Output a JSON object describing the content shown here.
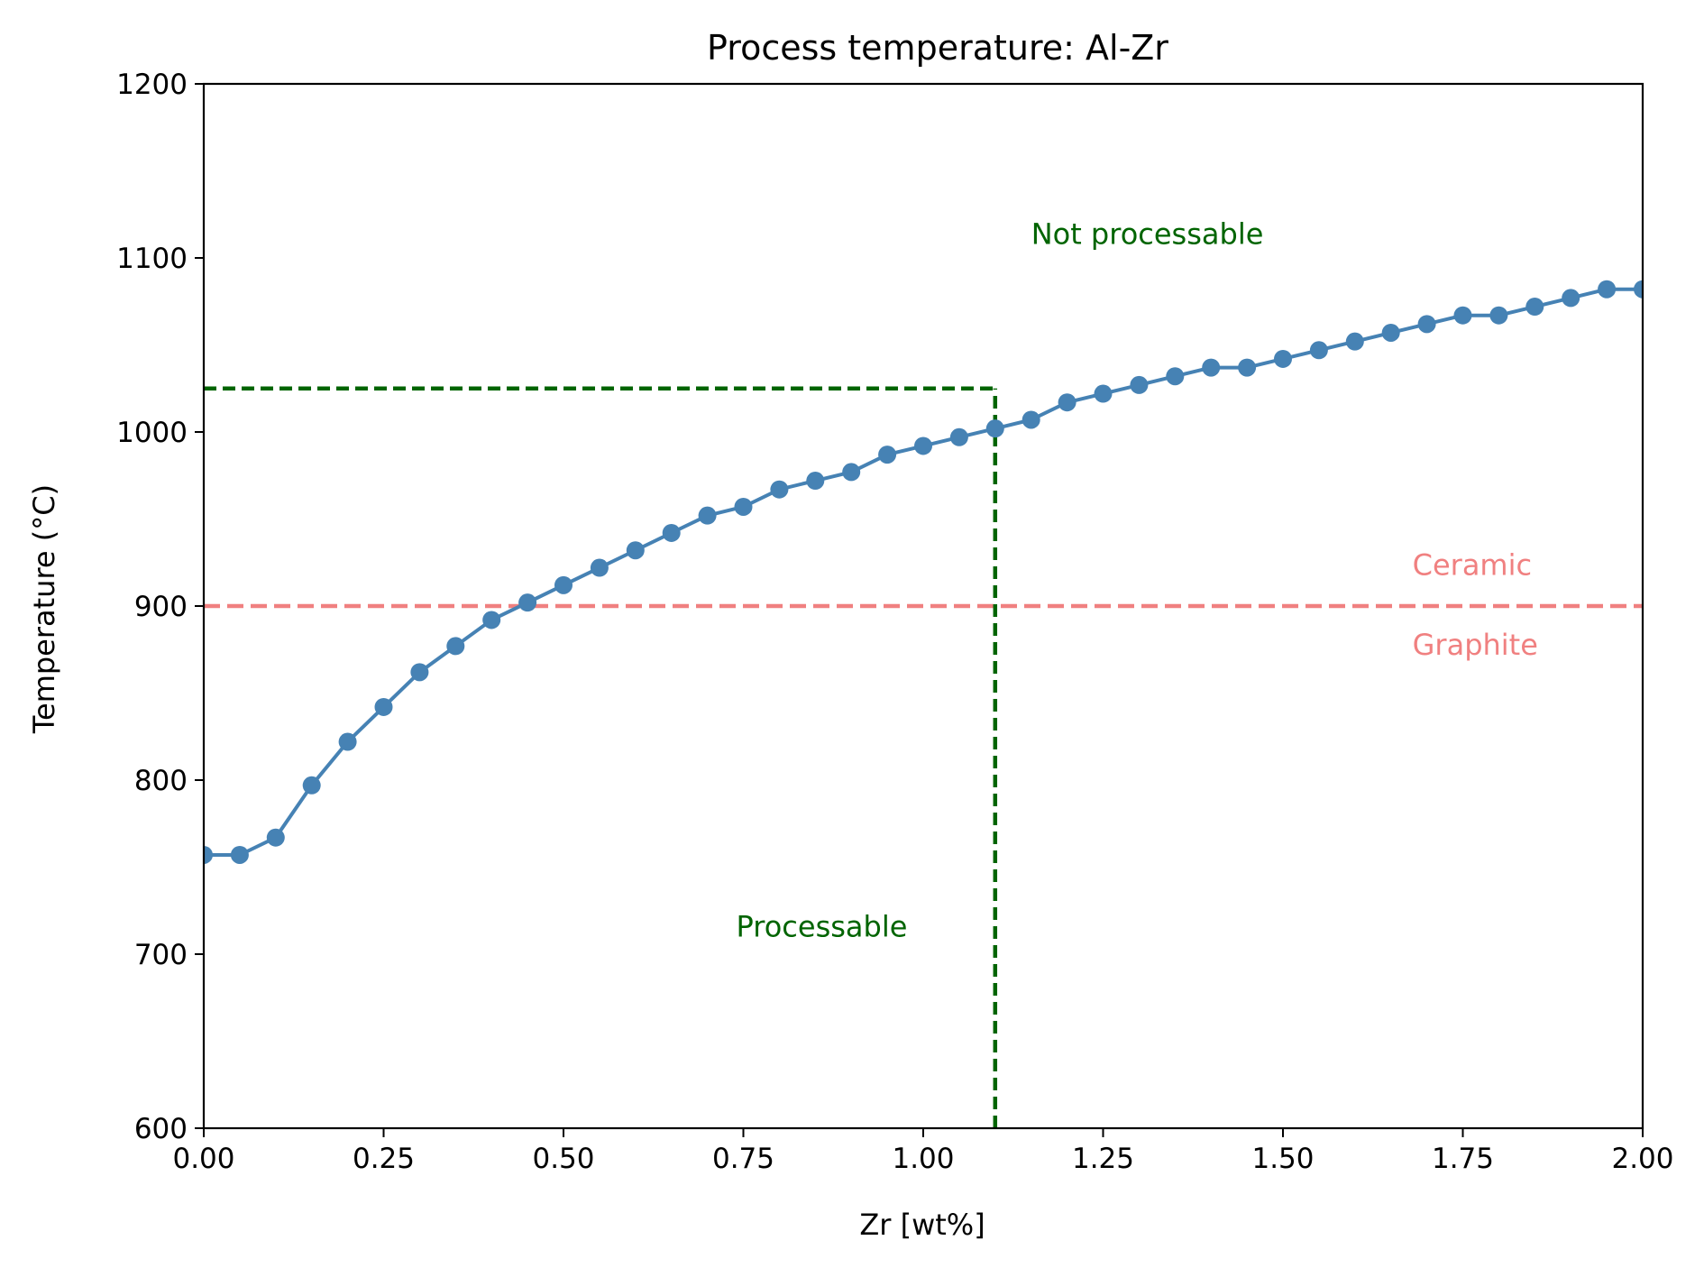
{
  "chart_data": {
    "type": "line",
    "title": "Process temperature: Al-Zr",
    "xlabel": "Zr [wt%]",
    "ylabel": "Temperature (°C)",
    "xlim": [
      0,
      2
    ],
    "ylim": [
      600,
      1200
    ],
    "grid": false,
    "xticks": [
      "0.00",
      "0.25",
      "0.50",
      "0.75",
      "1.00",
      "1.25",
      "1.50",
      "1.75",
      "2.00"
    ],
    "yticks": [
      "600",
      "700",
      "800",
      "900",
      "1000",
      "1100",
      "1200"
    ],
    "series": [
      {
        "color": "#4682b4",
        "x": [
          0.0,
          0.05,
          0.1,
          0.15,
          0.2,
          0.25,
          0.3,
          0.35,
          0.4,
          0.45,
          0.5,
          0.55,
          0.6,
          0.65,
          0.7,
          0.75,
          0.8,
          0.85,
          0.9,
          0.95,
          1.0,
          1.05,
          1.1,
          1.15,
          1.2,
          1.25,
          1.3,
          1.35,
          1.4,
          1.45,
          1.5,
          1.55,
          1.6,
          1.65,
          1.7,
          1.75,
          1.8,
          1.85,
          1.9,
          1.95,
          2.0
        ],
        "y": [
          757,
          757,
          767,
          797,
          822,
          842,
          862,
          877,
          892,
          902,
          912,
          922,
          932,
          942,
          952,
          957,
          967,
          972,
          977,
          987,
          992,
          997,
          1002,
          1007,
          1017,
          1022,
          1027,
          1032,
          1037,
          1037,
          1042,
          1047,
          1052,
          1057,
          1062,
          1067,
          1067,
          1072,
          1077,
          1082,
          1082
        ]
      }
    ],
    "reference_lines": [
      {
        "type": "horizontal",
        "y": 900,
        "x_from": 0,
        "x_to": 2,
        "color": "#f08080",
        "style": "dashed"
      },
      {
        "type": "horizontal",
        "y": 1025,
        "x_from": 0,
        "x_to": 1.1,
        "color": "#006400",
        "style": "dashed"
      },
      {
        "type": "vertical",
        "x": 1.1,
        "y_from": 600,
        "y_to": 1025,
        "color": "#006400",
        "style": "dashed"
      }
    ],
    "annotations": [
      {
        "text": "Not processable",
        "x": 1.15,
        "y": 1108,
        "color": "#006400"
      },
      {
        "text": "Processable",
        "x": 0.74,
        "y": 710,
        "color": "#006400"
      },
      {
        "text": "Ceramic",
        "x": 1.68,
        "y": 918,
        "color": "#f08080"
      },
      {
        "text": "Graphite",
        "x": 1.68,
        "y": 872,
        "color": "#f08080"
      }
    ]
  }
}
